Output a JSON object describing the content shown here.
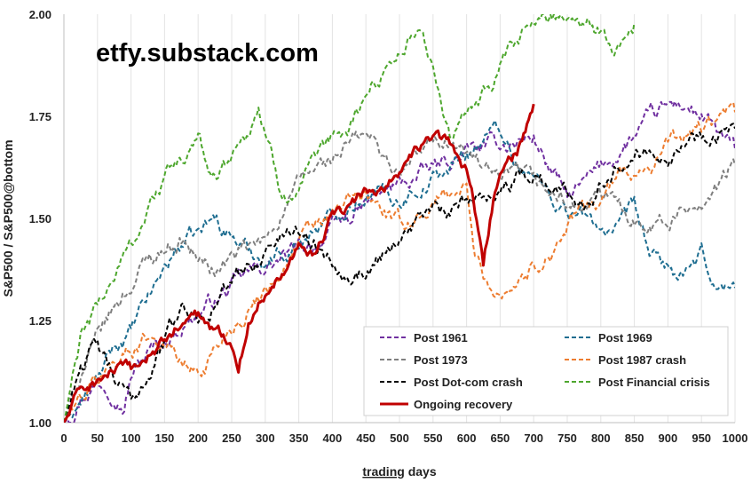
{
  "watermark": "etfy.substack.com",
  "chart_data": {
    "type": "line",
    "title": "",
    "xlabel_prefix": "trading",
    "xlabel_suffix": " days",
    "ylabel": "S&P500 / S&P500@bottom",
    "xlim": [
      0,
      1000
    ],
    "ylim": [
      1.0,
      2.0
    ],
    "xticks": [
      0,
      50,
      100,
      150,
      200,
      250,
      300,
      350,
      400,
      450,
      500,
      550,
      600,
      650,
      700,
      750,
      800,
      850,
      900,
      950,
      1000
    ],
    "xtick_labels": [
      "0",
      "50",
      "100",
      "150",
      "200",
      "250",
      "300",
      "350",
      "400",
      "450",
      "500",
      "550",
      "600",
      "650",
      "700",
      "750",
      "800",
      "850",
      "900",
      "950",
      "1000"
    ],
    "yticks": [
      1.0,
      1.25,
      1.5,
      1.75,
      2.0
    ],
    "ytick_labels": [
      "1.00",
      "1.25",
      "1.50",
      "1.75",
      "2.00"
    ],
    "grid": "vertical",
    "legend_position": "bottom-right",
    "series": [
      {
        "name": "Post 1961",
        "color": "#7030A0",
        "dash": "dashed",
        "x": [
          0,
          25,
          50,
          75,
          90,
          100,
          125,
          150,
          175,
          200,
          225,
          250,
          275,
          300,
          325,
          350,
          375,
          400,
          425,
          450,
          475,
          500,
          525,
          550,
          575,
          600,
          625,
          650,
          675,
          700,
          725,
          750,
          775,
          800,
          825,
          850,
          875,
          900,
          925,
          950,
          975,
          1000
        ],
        "y": [
          1.0,
          1.07,
          1.1,
          1.09,
          1.05,
          1.12,
          1.17,
          1.2,
          1.24,
          1.27,
          1.3,
          1.33,
          1.36,
          1.38,
          1.4,
          1.42,
          1.44,
          1.47,
          1.5,
          1.53,
          1.56,
          1.58,
          1.6,
          1.62,
          1.64,
          1.66,
          1.67,
          1.68,
          1.69,
          1.7,
          1.62,
          1.55,
          1.58,
          1.62,
          1.66,
          1.7,
          1.74,
          1.77,
          1.78,
          1.75,
          1.7,
          1.67
        ]
      },
      {
        "name": "Post 1969",
        "color": "#1F6E91",
        "dash": "dashed",
        "x": [
          0,
          25,
          50,
          75,
          100,
          125,
          150,
          175,
          200,
          225,
          250,
          275,
          300,
          325,
          350,
          375,
          400,
          425,
          450,
          475,
          500,
          525,
          550,
          575,
          600,
          625,
          650,
          675,
          700,
          725,
          750,
          775,
          800,
          825,
          850,
          875,
          900,
          925,
          950,
          975,
          1000
        ],
        "y": [
          1.0,
          1.05,
          1.1,
          1.18,
          1.22,
          1.3,
          1.38,
          1.44,
          1.46,
          1.5,
          1.46,
          1.42,
          1.4,
          1.42,
          1.44,
          1.48,
          1.5,
          1.54,
          1.57,
          1.56,
          1.55,
          1.58,
          1.6,
          1.62,
          1.66,
          1.7,
          1.72,
          1.64,
          1.6,
          1.56,
          1.52,
          1.5,
          1.48,
          1.46,
          1.52,
          1.4,
          1.38,
          1.35,
          1.4,
          1.33,
          1.33
        ]
      },
      {
        "name": "Post 1973",
        "color": "#7F7F7F",
        "dash": "dashed",
        "x": [
          0,
          25,
          50,
          75,
          100,
          125,
          150,
          175,
          200,
          225,
          250,
          275,
          300,
          325,
          350,
          375,
          400,
          425,
          450,
          475,
          500,
          525,
          550,
          575,
          600,
          625,
          650,
          675,
          700,
          725,
          750,
          775,
          800,
          825,
          850,
          875,
          900,
          925,
          950,
          975,
          1000
        ],
        "y": [
          1.0,
          1.12,
          1.2,
          1.28,
          1.34,
          1.4,
          1.43,
          1.45,
          1.4,
          1.37,
          1.4,
          1.42,
          1.44,
          1.52,
          1.58,
          1.62,
          1.64,
          1.68,
          1.7,
          1.66,
          1.6,
          1.65,
          1.68,
          1.7,
          1.66,
          1.62,
          1.58,
          1.6,
          1.58,
          1.56,
          1.54,
          1.52,
          1.55,
          1.53,
          1.5,
          1.5,
          1.49,
          1.52,
          1.55,
          1.58,
          1.63
        ]
      },
      {
        "name": "Post 1987 crash",
        "color": "#ED7D31",
        "dash": "dashed",
        "x": [
          0,
          25,
          50,
          75,
          100,
          125,
          150,
          175,
          200,
          225,
          250,
          275,
          300,
          325,
          350,
          375,
          400,
          425,
          450,
          475,
          500,
          525,
          550,
          575,
          600,
          610,
          625,
          650,
          675,
          700,
          725,
          750,
          775,
          800,
          825,
          850,
          875,
          900,
          925,
          950,
          975,
          1000
        ],
        "y": [
          1.0,
          1.06,
          1.1,
          1.15,
          1.18,
          1.22,
          1.2,
          1.15,
          1.12,
          1.18,
          1.24,
          1.28,
          1.33,
          1.38,
          1.44,
          1.48,
          1.5,
          1.54,
          1.55,
          1.52,
          1.48,
          1.5,
          1.54,
          1.56,
          1.58,
          1.42,
          1.36,
          1.32,
          1.35,
          1.38,
          1.42,
          1.48,
          1.52,
          1.55,
          1.6,
          1.62,
          1.64,
          1.68,
          1.7,
          1.72,
          1.74,
          1.76
        ]
      },
      {
        "name": "Post Dot-com crash",
        "color": "#000000",
        "dash": "dashed",
        "x": [
          0,
          25,
          50,
          75,
          100,
          125,
          150,
          175,
          200,
          225,
          250,
          275,
          300,
          325,
          350,
          375,
          400,
          425,
          450,
          475,
          500,
          525,
          550,
          575,
          600,
          625,
          650,
          675,
          700,
          725,
          750,
          775,
          800,
          825,
          850,
          875,
          900,
          925,
          950,
          975,
          1000
        ],
        "y": [
          1.0,
          1.15,
          1.18,
          1.1,
          1.05,
          1.12,
          1.2,
          1.28,
          1.26,
          1.3,
          1.34,
          1.38,
          1.42,
          1.46,
          1.48,
          1.44,
          1.4,
          1.38,
          1.37,
          1.42,
          1.46,
          1.5,
          1.52,
          1.5,
          1.54,
          1.56,
          1.58,
          1.6,
          1.62,
          1.58,
          1.56,
          1.54,
          1.6,
          1.64,
          1.66,
          1.68,
          1.67,
          1.69,
          1.7,
          1.72,
          1.72
        ]
      },
      {
        "name": "Post Financial crisis",
        "color": "#4EA72E",
        "dash": "dashed",
        "x": [
          0,
          25,
          50,
          75,
          100,
          125,
          150,
          175,
          200,
          225,
          250,
          275,
          290,
          300,
          325,
          350,
          375,
          400,
          425,
          450,
          475,
          500,
          525,
          550,
          575,
          600,
          625,
          650,
          675,
          700,
          725,
          750,
          775,
          800,
          825,
          850
        ],
        "y": [
          1.0,
          1.2,
          1.28,
          1.36,
          1.44,
          1.52,
          1.6,
          1.64,
          1.68,
          1.6,
          1.66,
          1.72,
          1.78,
          1.7,
          1.56,
          1.58,
          1.62,
          1.68,
          1.72,
          1.8,
          1.86,
          1.92,
          1.96,
          1.88,
          1.7,
          1.74,
          1.8,
          1.86,
          1.92,
          1.98,
          2.0,
          2.0,
          2.0,
          1.96,
          1.92,
          1.98
        ]
      },
      {
        "name": "Ongoing recovery",
        "color": "#C00000",
        "dash": "solid",
        "x": [
          0,
          25,
          50,
          75,
          100,
          125,
          150,
          175,
          200,
          225,
          250,
          260,
          275,
          300,
          325,
          350,
          375,
          400,
          425,
          450,
          475,
          500,
          525,
          550,
          575,
          600,
          615,
          625,
          640,
          650,
          675,
          700
        ],
        "y": [
          1.0,
          1.08,
          1.1,
          1.13,
          1.12,
          1.16,
          1.2,
          1.24,
          1.26,
          1.22,
          1.2,
          1.15,
          1.25,
          1.32,
          1.38,
          1.44,
          1.42,
          1.5,
          1.53,
          1.56,
          1.58,
          1.62,
          1.66,
          1.7,
          1.68,
          1.62,
          1.5,
          1.38,
          1.55,
          1.6,
          1.66,
          1.78
        ]
      }
    ]
  }
}
